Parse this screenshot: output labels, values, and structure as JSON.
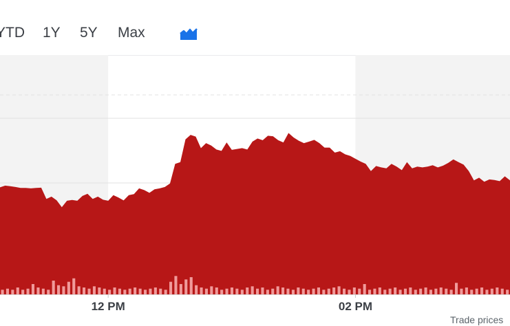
{
  "range_tabs": [
    "YTD",
    "1Y",
    "5Y",
    "Max"
  ],
  "chart_type_icon": "mountain-chart-icon",
  "colors": {
    "accent_blue": "#1a73e8",
    "price_area": "#b71717",
    "volume_bar": "#f09a9a",
    "shaded_band": "#f3f3f3"
  },
  "footnote": "Trade prices",
  "chart_data": {
    "type": "area",
    "x_tick_labels": [
      "12 PM",
      "02 PM"
    ],
    "x_tick_positions": [
      21,
      69
    ],
    "grid": true,
    "price_series": [
      62.2,
      63.2,
      62.9,
      62.4,
      61.9,
      61.9,
      61.6,
      61.9,
      62.0,
      55.5,
      56.8,
      54.7,
      50.7,
      54.4,
      54.9,
      54.4,
      57.2,
      58.5,
      55.5,
      56.8,
      55.0,
      54.4,
      57.7,
      56.3,
      54.6,
      57.7,
      58.3,
      61.6,
      60.6,
      59.0,
      61.1,
      61.6,
      62.4,
      64.5,
      75.9,
      76.9,
      90.1,
      92.7,
      91.7,
      85.0,
      87.9,
      86.5,
      84.2,
      83.4,
      88.3,
      84.0,
      84.5,
      85.0,
      84.2,
      88.8,
      90.6,
      89.6,
      92.2,
      91.9,
      89.6,
      88.3,
      93.8,
      91.2,
      89.3,
      87.9,
      88.8,
      89.8,
      87.9,
      85.3,
      85.3,
      82.4,
      83.2,
      81.4,
      80.5,
      78.8,
      77.2,
      75.9,
      71.7,
      74.6,
      73.8,
      73.3,
      75.9,
      74.3,
      72.2,
      76.9,
      73.3,
      74.3,
      73.8,
      74.3,
      75.1,
      73.8,
      74.8,
      76.4,
      78.5,
      76.9,
      75.4,
      71.7,
      66.3,
      67.8,
      65.5,
      66.8,
      66.5,
      65.8,
      68.6,
      66.3
    ],
    "volume_series": [
      4,
      5,
      4,
      6,
      4,
      5,
      9,
      6,
      5,
      4,
      12,
      8,
      7,
      11,
      14,
      7,
      6,
      5,
      7,
      6,
      5,
      4,
      6,
      5,
      4,
      5,
      6,
      5,
      4,
      5,
      6,
      5,
      4,
      11,
      16,
      9,
      13,
      15,
      8,
      6,
      5,
      7,
      6,
      4,
      5,
      6,
      5,
      4,
      6,
      7,
      5,
      6,
      4,
      5,
      7,
      6,
      5,
      4,
      6,
      5,
      4,
      5,
      6,
      4,
      5,
      6,
      7,
      5,
      4,
      6,
      5,
      9,
      4,
      5,
      6,
      4,
      5,
      6,
      4,
      5,
      6,
      4,
      5,
      6,
      4,
      5,
      6,
      5,
      4,
      10,
      5,
      6,
      4,
      5,
      6,
      4,
      5,
      6,
      5,
      4
    ]
  }
}
